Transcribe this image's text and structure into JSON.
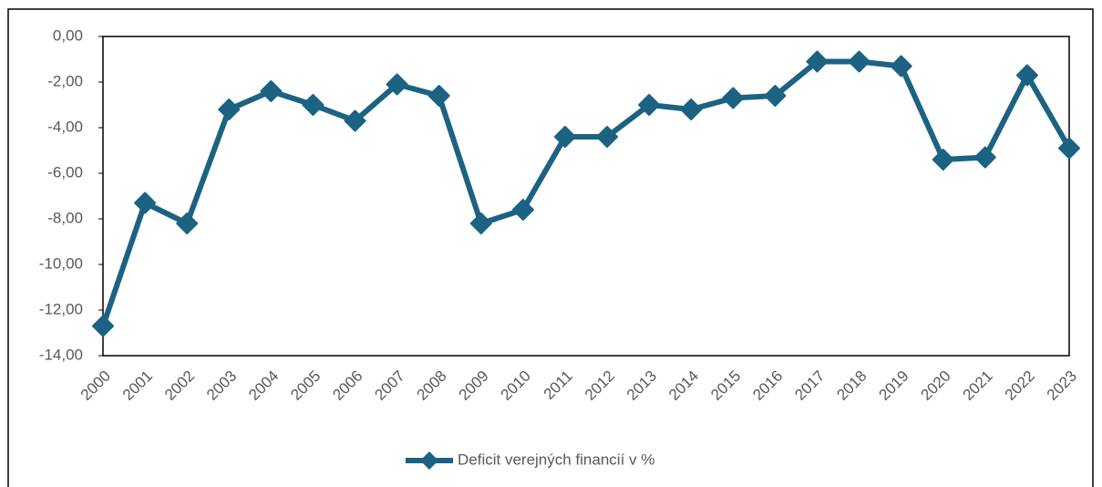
{
  "chart_data": {
    "type": "line",
    "categories": [
      "2000",
      "2001",
      "2002",
      "2003",
      "2004",
      "2005",
      "2006",
      "2007",
      "2008",
      "2009",
      "2010",
      "2011",
      "2012",
      "2013",
      "2014",
      "2015",
      "2016",
      "2017",
      "2018",
      "2019",
      "2020",
      "2021",
      "2022",
      "2023"
    ],
    "series": [
      {
        "name": "Deficit verejných financií v %",
        "color": "#1b6283",
        "values": [
          -12.7,
          -7.3,
          -8.2,
          -3.2,
          -2.4,
          -3.0,
          -3.7,
          -2.1,
          -2.6,
          -8.2,
          -7.6,
          -4.4,
          -4.4,
          -3.0,
          -3.2,
          -2.7,
          -2.6,
          -1.1,
          -1.1,
          -1.3,
          -5.4,
          -5.3,
          -1.7,
          -4.9
        ]
      }
    ],
    "ylim": [
      -14,
      0
    ],
    "yticks": [
      {
        "value": 0,
        "label": "0,00"
      },
      {
        "value": -2,
        "label": "-2,00"
      },
      {
        "value": -4,
        "label": "-4,00"
      },
      {
        "value": -6,
        "label": "-6,00"
      },
      {
        "value": -8,
        "label": "-8,00"
      },
      {
        "value": -10,
        "label": "-10,00"
      },
      {
        "value": -12,
        "label": "-12,00"
      },
      {
        "value": -14,
        "label": "-14,00"
      }
    ],
    "legend": "bottom"
  }
}
